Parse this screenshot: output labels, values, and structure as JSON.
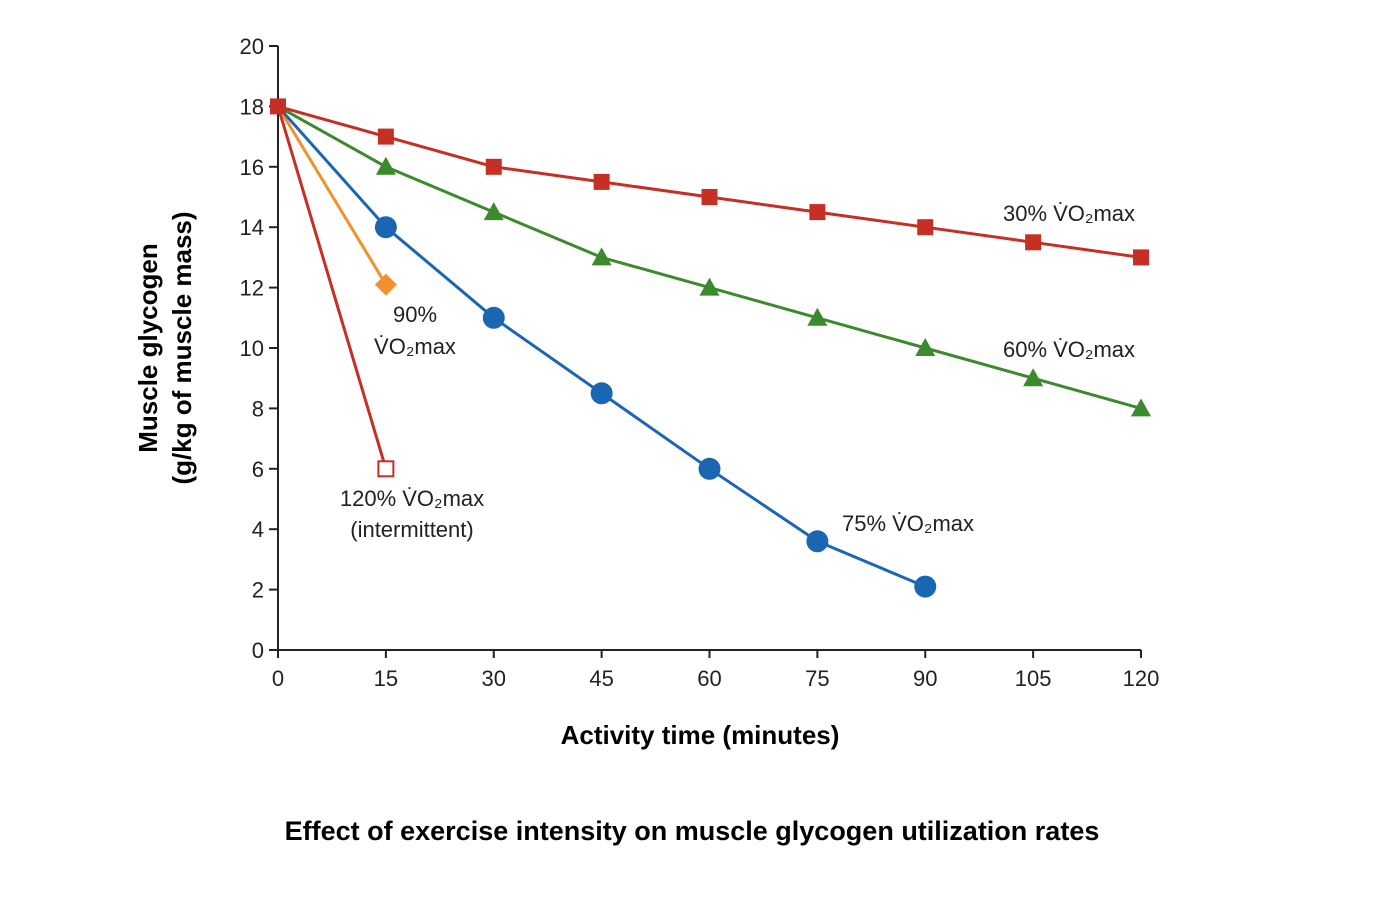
{
  "chart_data": {
    "type": "line",
    "title": "Effect of exercise intensity on muscle glycogen utilization rates",
    "xlabel": "Activity time (minutes)",
    "ylabel_lines": [
      "Muscle glycogen",
      "(g/kg of muscle mass)"
    ],
    "xlim": [
      0,
      120
    ],
    "ylim": [
      0,
      20
    ],
    "x_ticks": [
      "0",
      "15",
      "30",
      "45",
      "60",
      "75",
      "90",
      "105",
      "120"
    ],
    "y_ticks": [
      "0",
      "2",
      "4",
      "6",
      "8",
      "10",
      "12",
      "14",
      "16",
      "18",
      "20"
    ],
    "grid": false,
    "series": [
      {
        "name": "30% V̇O2max",
        "label_lines": [
          "30% V̇O₂max"
        ],
        "color": "#c62f23",
        "marker": "square",
        "x": [
          0,
          15,
          30,
          45,
          60,
          75,
          90,
          105,
          120
        ],
        "y": [
          18,
          17,
          16,
          15.5,
          15,
          14.5,
          14,
          13.5,
          13
        ]
      },
      {
        "name": "60% V̇O2max",
        "label_lines": [
          "60% V̇O₂max"
        ],
        "color": "#3c8a2e",
        "marker": "triangle",
        "x": [
          0,
          15,
          30,
          45,
          60,
          75,
          90,
          105,
          120
        ],
        "y": [
          18,
          16,
          14.5,
          13,
          12,
          11,
          10,
          9,
          8
        ]
      },
      {
        "name": "75% V̇O2max",
        "label_lines": [
          "75% V̇O₂max"
        ],
        "color": "#1b66b3",
        "marker": "circle",
        "x": [
          0,
          15,
          30,
          45,
          60,
          75,
          90
        ],
        "y": [
          18,
          14,
          11,
          8.5,
          6,
          3.6,
          2.1
        ]
      },
      {
        "name": "90% V̇O2max",
        "label_lines": [
          "90%",
          "V̇O₂max"
        ],
        "color": "#f0922b",
        "marker": "diamond",
        "x": [
          0,
          15
        ],
        "y": [
          18,
          12.1
        ]
      },
      {
        "name": "120% V̇O2max (intermittent)",
        "label_lines": [
          "120% V̇O₂max",
          "(intermittent)"
        ],
        "color": "#c62f23",
        "marker": "open-square",
        "x": [
          0,
          15
        ],
        "y": [
          18,
          6
        ]
      }
    ]
  }
}
